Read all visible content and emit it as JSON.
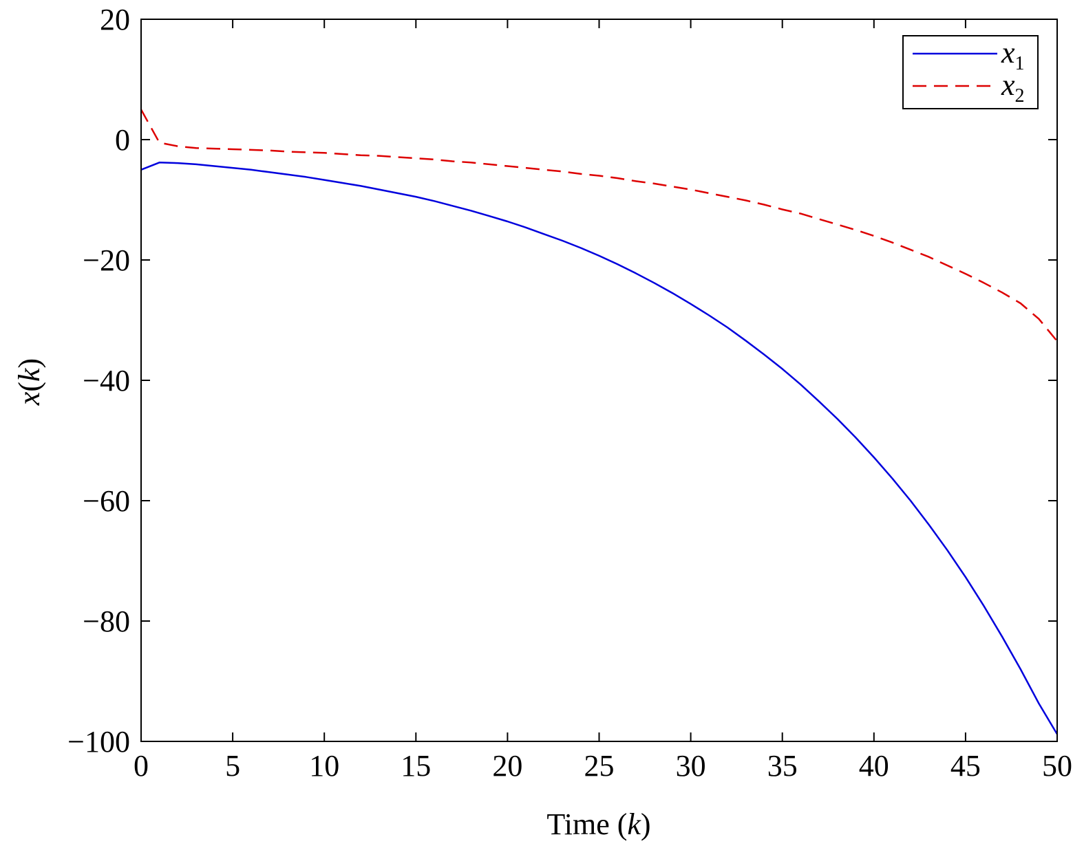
{
  "chart_data": {
    "type": "line",
    "xlabel_parts": [
      "Time (",
      "k",
      ")"
    ],
    "ylabel_parts": [
      "x",
      "(",
      "k",
      ")"
    ],
    "xlim": [
      0,
      50
    ],
    "ylim": [
      -100,
      20
    ],
    "xticks": [
      0,
      5,
      10,
      15,
      20,
      25,
      30,
      35,
      40,
      45,
      50
    ],
    "yticks": [
      -100,
      -80,
      -60,
      -40,
      -20,
      0,
      20
    ],
    "xtick_labels": [
      "0",
      "5",
      "10",
      "15",
      "20",
      "25",
      "30",
      "35",
      "40",
      "45",
      "50"
    ],
    "ytick_labels": [
      "−100",
      "−80",
      "−60",
      "−40",
      "−20",
      "0",
      "20"
    ],
    "grid": false,
    "legend_position": "top-right",
    "series": [
      {
        "legend_base": "x",
        "legend_sub": "1",
        "color": "#0000dd",
        "style": "solid",
        "x": [
          0,
          1,
          2,
          3,
          4,
          5,
          6,
          7,
          8,
          9,
          10,
          11,
          12,
          13,
          14,
          15,
          16,
          17,
          18,
          19,
          20,
          21,
          22,
          23,
          24,
          25,
          26,
          27,
          28,
          29,
          30,
          31,
          32,
          33,
          34,
          35,
          36,
          37,
          38,
          39,
          40,
          41,
          42,
          43,
          44,
          45,
          46,
          47,
          48,
          49,
          50
        ],
        "values": [
          -5.0,
          -3.8,
          -3.9,
          -4.1,
          -4.4,
          -4.7,
          -5.0,
          -5.4,
          -5.8,
          -6.2,
          -6.7,
          -7.2,
          -7.7,
          -8.3,
          -8.9,
          -9.5,
          -10.2,
          -11.0,
          -11.8,
          -12.7,
          -13.6,
          -14.6,
          -15.7,
          -16.8,
          -18.0,
          -19.3,
          -20.7,
          -22.2,
          -23.8,
          -25.5,
          -27.3,
          -29.2,
          -31.2,
          -33.4,
          -35.7,
          -38.1,
          -40.7,
          -43.5,
          -46.4,
          -49.5,
          -52.8,
          -56.3,
          -60.0,
          -64.0,
          -68.2,
          -72.7,
          -77.5,
          -82.6,
          -88.0,
          -93.7,
          -98.8
        ]
      },
      {
        "legend_base": "x",
        "legend_sub": "2",
        "color": "#dd0000",
        "style": "dashed",
        "x": [
          0,
          1,
          2,
          3,
          4,
          5,
          6,
          7,
          8,
          9,
          10,
          11,
          12,
          13,
          14,
          15,
          16,
          17,
          18,
          19,
          20,
          21,
          22,
          23,
          24,
          25,
          26,
          27,
          28,
          29,
          30,
          31,
          32,
          33,
          34,
          35,
          36,
          37,
          38,
          39,
          40,
          41,
          42,
          43,
          44,
          45,
          46,
          47,
          48,
          49,
          50
        ],
        "values": [
          5.0,
          -0.5,
          -1.1,
          -1.4,
          -1.5,
          -1.6,
          -1.7,
          -1.8,
          -2.0,
          -2.1,
          -2.2,
          -2.4,
          -2.6,
          -2.7,
          -2.9,
          -3.1,
          -3.3,
          -3.6,
          -3.8,
          -4.1,
          -4.4,
          -4.7,
          -5.0,
          -5.3,
          -5.7,
          -6.0,
          -6.4,
          -6.9,
          -7.3,
          -7.8,
          -8.3,
          -8.9,
          -9.5,
          -10.1,
          -10.8,
          -11.6,
          -12.3,
          -13.2,
          -14.1,
          -15.0,
          -16.0,
          -17.1,
          -18.3,
          -19.5,
          -20.9,
          -22.3,
          -23.8,
          -25.4,
          -27.2,
          -29.8,
          -33.5
        ]
      }
    ]
  }
}
